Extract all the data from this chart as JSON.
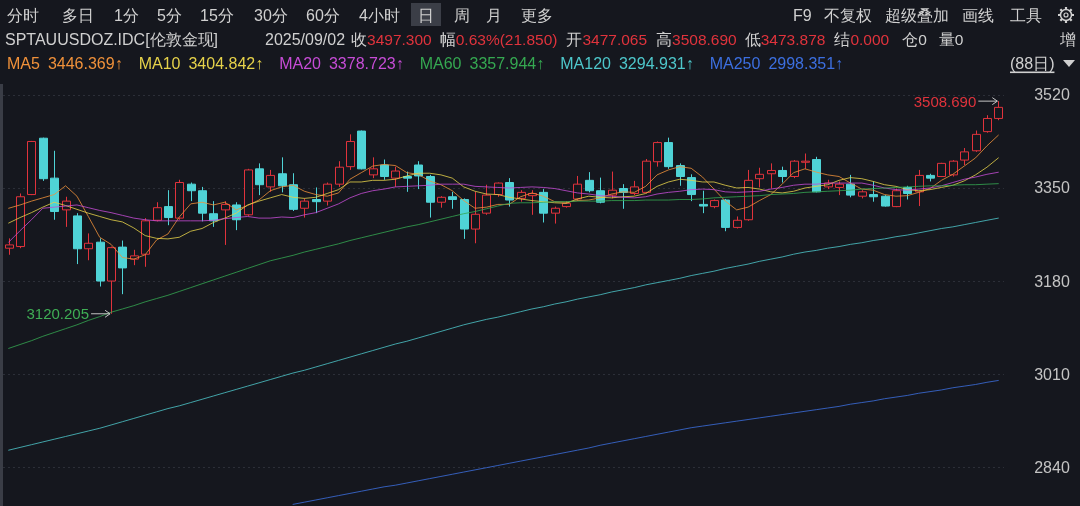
{
  "chart_data": {
    "type": "candlestick",
    "title": "SPTAUUSDOZ.IDC[伦敦金现]",
    "subtitle": "2025/09/02",
    "categories": [
      null,
      null,
      null,
      null,
      null,
      null,
      null,
      null,
      null,
      null,
      null,
      null,
      null,
      null,
      null,
      null,
      null,
      null,
      null,
      null,
      null,
      null,
      null,
      null,
      null,
      null,
      null,
      null,
      null,
      null,
      null,
      null,
      null,
      null,
      null,
      null,
      null,
      null,
      null,
      null,
      null,
      null,
      null,
      null,
      null,
      null,
      null,
      null,
      null,
      null,
      null,
      null,
      null,
      null,
      null,
      null,
      null,
      null,
      null,
      null,
      null,
      null,
      null,
      null,
      null,
      null,
      null,
      null,
      null,
      null,
      null,
      null,
      null,
      null,
      null,
      null,
      null,
      null,
      null,
      null,
      null,
      null,
      null,
      null,
      null,
      null,
      null,
      null
    ],
    "ohlc": [
      [
        3240,
        3258,
        3228,
        3246
      ],
      [
        3243,
        3340,
        3240,
        3334
      ],
      [
        3338,
        3436,
        3337,
        3435
      ],
      [
        3441,
        3442,
        3363,
        3367
      ],
      [
        3368,
        3418,
        3292,
        3307
      ],
      [
        3310,
        3334,
        3279,
        3326
      ],
      [
        3299,
        3304,
        3211,
        3239
      ],
      [
        3239,
        3267,
        3218,
        3249
      ],
      [
        3251,
        3258,
        3170,
        3180
      ],
      [
        3180,
        3243,
        3120.205,
        3241
      ],
      [
        3242,
        3254,
        3156,
        3204
      ],
      [
        3220,
        3237,
        3209,
        3226
      ],
      [
        3229,
        3295,
        3206,
        3290
      ],
      [
        3291,
        3324,
        3289,
        3314
      ],
      [
        3316,
        3346,
        3282,
        3296
      ],
      [
        3295,
        3365,
        3292,
        3360
      ],
      [
        3357,
        3360,
        3326,
        3345
      ],
      [
        3345,
        3352,
        3289,
        3304
      ],
      [
        3303,
        3326,
        3279,
        3290
      ],
      [
        3310,
        3326,
        3246,
        3320
      ],
      [
        3319,
        3324,
        3273,
        3292
      ],
      [
        3301,
        3385,
        3299,
        3383
      ],
      [
        3385,
        3395,
        3337,
        3356
      ],
      [
        3352,
        3383,
        3343,
        3373
      ],
      [
        3376,
        3406,
        3342,
        3354
      ],
      [
        3356,
        3377,
        3308,
        3311
      ],
      [
        3313,
        3331,
        3296,
        3326
      ],
      [
        3329,
        3351,
        3304,
        3325
      ],
      [
        3326,
        3360,
        3318,
        3357
      ],
      [
        3357,
        3399,
        3352,
        3388
      ],
      [
        3389,
        3448,
        3383,
        3435
      ],
      [
        3454,
        3455,
        3384,
        3385
      ],
      [
        3374,
        3406,
        3368,
        3385
      ],
      [
        3392,
        3402,
        3365,
        3371
      ],
      [
        3368,
        3389,
        3352,
        3381
      ],
      [
        3371,
        3380,
        3343,
        3368
      ],
      [
        3392,
        3399,
        3348,
        3372
      ],
      [
        3371,
        3374,
        3296,
        3324
      ],
      [
        3324,
        3335,
        3314,
        3333
      ],
      [
        3334,
        3343,
        3312,
        3329
      ],
      [
        3329,
        3331,
        3257,
        3275
      ],
      [
        3275,
        3343,
        3249,
        3302
      ],
      [
        3304,
        3356,
        3301,
        3337
      ],
      [
        3338,
        3360,
        3334,
        3359
      ],
      [
        3360,
        3368,
        3316,
        3328
      ],
      [
        3331,
        3346,
        3325,
        3342
      ],
      [
        3336,
        3346,
        3301,
        3340
      ],
      [
        3342,
        3348,
        3287,
        3304
      ],
      [
        3304,
        3316,
        3285,
        3313
      ],
      [
        3316,
        3326,
        3314,
        3322
      ],
      [
        3330,
        3372,
        3326,
        3357
      ],
      [
        3364,
        3379,
        3342,
        3345
      ],
      [
        3345,
        3369,
        3322,
        3324
      ],
      [
        3337,
        3380,
        3331,
        3346
      ],
      [
        3349,
        3357,
        3312,
        3342
      ],
      [
        3340,
        3363,
        3337,
        3352
      ],
      [
        3342,
        3403,
        3340,
        3399
      ],
      [
        3398,
        3435,
        3389,
        3433
      ],
      [
        3433,
        3442,
        3385,
        3389
      ],
      [
        3391,
        3395,
        3354,
        3371
      ],
      [
        3369,
        3375,
        3326,
        3338
      ],
      [
        3320,
        3345,
        3304,
        3317
      ],
      [
        3316,
        3329,
        3313,
        3327
      ],
      [
        3328,
        3330,
        3271,
        3278
      ],
      [
        3278,
        3298,
        3276,
        3291
      ],
      [
        3292,
        3383,
        3290,
        3364
      ],
      [
        3367,
        3387,
        3351,
        3375
      ],
      [
        3376,
        3395,
        3349,
        3382
      ],
      [
        3382,
        3389,
        3360,
        3371
      ],
      [
        3371,
        3401,
        3368,
        3399
      ],
      [
        3397,
        3413,
        3385,
        3399
      ],
      [
        3402,
        3407,
        3342,
        3343
      ],
      [
        3352,
        3365,
        3348,
        3359
      ],
      [
        3351,
        3362,
        3337,
        3357
      ],
      [
        3357,
        3374,
        3333,
        3337
      ],
      [
        3335,
        3346,
        3331,
        3343
      ],
      [
        3338,
        3362,
        3325,
        3334
      ],
      [
        3335,
        3337,
        3316,
        3317
      ],
      [
        3316,
        3349,
        3315,
        3345
      ],
      [
        3351,
        3354,
        3329,
        3340
      ],
      [
        3343,
        3383,
        3317,
        3373
      ],
      [
        3373,
        3376,
        3362,
        3368
      ],
      [
        3371,
        3396,
        3370,
        3395
      ],
      [
        3374,
        3401,
        3371,
        3399
      ],
      [
        3401,
        3423,
        3392,
        3416
      ],
      [
        3418,
        3455,
        3416,
        3448
      ],
      [
        3453,
        3483,
        3451,
        3477
      ],
      [
        3477.065,
        3508.69,
        3473.878,
        3497.3
      ]
    ],
    "colors": [
      "#e0333c",
      "#e0333c",
      "#e0333c",
      "#4fd3d6",
      "#4fd3d6",
      "#e0333c",
      "#4fd3d6",
      "#e0333c",
      "#4fd3d6",
      "#e0333c",
      "#4fd3d6",
      "#e0333c",
      "#e0333c",
      "#e0333c",
      "#4fd3d6",
      "#e0333c",
      "#4fd3d6",
      "#4fd3d6",
      "#4fd3d6",
      "#e0333c",
      "#4fd3d6",
      "#e0333c",
      "#4fd3d6",
      "#e0333c",
      "#4fd3d6",
      "#4fd3d6",
      "#e0333c",
      "#4fd3d6",
      "#e0333c",
      "#e0333c",
      "#e0333c",
      "#4fd3d6",
      "#e0333c",
      "#4fd3d6",
      "#e0333c",
      "#4fd3d6",
      "#4fd3d6",
      "#4fd3d6",
      "#e0333c",
      "#4fd3d6",
      "#4fd3d6",
      "#e0333c",
      "#e0333c",
      "#e0333c",
      "#4fd3d6",
      "#e0333c",
      "#e0333c",
      "#4fd3d6",
      "#e0333c",
      "#e0333c",
      "#e0333c",
      "#4fd3d6",
      "#4fd3d6",
      "#e0333c",
      "#4fd3d6",
      "#e0333c",
      "#e0333c",
      "#e0333c",
      "#4fd3d6",
      "#4fd3d6",
      "#4fd3d6",
      "#4fd3d6",
      "#e0333c",
      "#4fd3d6",
      "#e0333c",
      "#e0333c",
      "#e0333c",
      "#e0333c",
      "#4fd3d6",
      "#e0333c",
      "#e0333c",
      "#4fd3d6",
      "#e0333c",
      "#e0333c",
      "#4fd3d6",
      "#e0333c",
      "#4fd3d6",
      "#4fd3d6",
      "#e0333c",
      "#4fd3d6",
      "#e0333c",
      "#4fd3d6",
      "#e0333c",
      "#e0333c",
      "#e0333c",
      "#e0333c",
      "#e0333c",
      "#e0333c"
    ],
    "series": [
      {
        "name": "MA5",
        "type": "line",
        "color": "#f0913a",
        "values": [
          3313,
          3319,
          3326,
          3332,
          3338,
          3354,
          3335,
          3298,
          3260,
          3247,
          3223,
          3220,
          3228,
          3255,
          3266,
          3297,
          3321,
          3324,
          3319,
          3324,
          3310,
          3318,
          3328,
          3345,
          3352,
          3355,
          3344,
          3338,
          3335,
          3341,
          3366,
          3378,
          3390,
          3393,
          3391,
          3378,
          3375,
          3363,
          3356,
          3345,
          3327,
          3313,
          3315,
          3320,
          3320,
          3334,
          3341,
          3335,
          3325,
          3324,
          3327,
          3328,
          3332,
          3339,
          3343,
          3342,
          3353,
          3374,
          3383,
          3389,
          3386,
          3370,
          3348,
          3326,
          3310,
          3315,
          3327,
          3338,
          3357,
          3378,
          3385,
          3379,
          3374,
          3371,
          3359,
          3348,
          3346,
          3338,
          3335,
          3336,
          3342,
          3349,
          3364,
          3375,
          3390,
          3405,
          3427,
          3446.369
        ]
      },
      {
        "name": "MA10",
        "type": "line",
        "color": "#e6d24a",
        "values": [
          3286,
          3296,
          3305,
          3315,
          3324,
          3318,
          3311,
          3304,
          3298,
          3292,
          3288,
          3277,
          3263,
          3258,
          3257,
          3260,
          3271,
          3276,
          3287,
          3295,
          3304,
          3319,
          3326,
          3332,
          3338,
          3333,
          3331,
          3333,
          3340,
          3347,
          3361,
          3361,
          3364,
          3364,
          3366,
          3372,
          3377,
          3377,
          3374,
          3368,
          3352,
          3344,
          3339,
          3338,
          3333,
          3330,
          3327,
          3325,
          3323,
          3322,
          3330,
          3335,
          3333,
          3332,
          3334,
          3335,
          3340,
          3353,
          3361,
          3366,
          3364,
          3361,
          3361,
          3355,
          3350,
          3351,
          3348,
          3343,
          3341,
          3344,
          3350,
          3353,
          3356,
          3364,
          3369,
          3367,
          3362,
          3356,
          3353,
          3347,
          3345,
          3347,
          3351,
          3355,
          3363,
          3374,
          3388,
          3404.842
        ]
      },
      {
        "name": "MA20",
        "type": "line",
        "color": "#c64cd6",
        "values": [
          3251,
          3272,
          3292,
          3313,
          3315,
          3317,
          3319,
          3314,
          3309,
          3305,
          3300,
          3295,
          3292,
          3290,
          3290,
          3290,
          3290,
          3290,
          3291,
          3294,
          3296,
          3298,
          3295,
          3295,
          3297,
          3296,
          3301,
          3305,
          3313,
          3321,
          3332,
          3340,
          3345,
          3348,
          3352,
          3353,
          3354,
          3355,
          3357,
          3357,
          3357,
          3353,
          3352,
          3351,
          3350,
          3351,
          3352,
          3351,
          3349,
          3345,
          3341,
          3339,
          3336,
          3335,
          3333,
          3332,
          3334,
          3339,
          3342,
          3344,
          3347,
          3348,
          3347,
          3343,
          3342,
          3343,
          3344,
          3348,
          3351,
          3355,
          3357,
          3357,
          3359,
          3359,
          3359,
          3359,
          3355,
          3350,
          3347,
          3346,
          3348,
          3350,
          3354,
          3360,
          3366,
          3370,
          3375,
          3378.723
        ]
      },
      {
        "name": "MA60",
        "type": "line",
        "color": "#35a851",
        "values": [
          3057,
          3064,
          3071,
          3079,
          3086,
          3093,
          3100,
          3108,
          3115,
          3123,
          3129,
          3135,
          3142,
          3148,
          3154,
          3161,
          3168,
          3175,
          3182,
          3189,
          3196,
          3203,
          3210,
          3217,
          3222,
          3227,
          3233,
          3238,
          3243,
          3248,
          3254,
          3259,
          3264,
          3269,
          3274,
          3279,
          3283,
          3288,
          3293,
          3298,
          3303,
          3307,
          3312,
          3317,
          3322,
          3323,
          3323,
          3324,
          3325,
          3325,
          3326,
          3326,
          3326,
          3327,
          3327,
          3327,
          3328,
          3328,
          3328,
          3329,
          3329,
          3330,
          3332,
          3333,
          3334,
          3335,
          3336,
          3338,
          3339,
          3340,
          3342,
          3343,
          3344,
          3345,
          3346,
          3348,
          3349,
          3350,
          3351,
          3352,
          3353,
          3354,
          3354,
          3355,
          3356,
          3356,
          3357,
          3357.944
        ]
      },
      {
        "name": "MA120",
        "type": "line",
        "color": "#4ec7cb",
        "values": [
          2871,
          2876,
          2881,
          2886,
          2891,
          2896,
          2901,
          2906,
          2911,
          2917,
          2923,
          2929,
          2935,
          2941,
          2947,
          2952,
          2958,
          2964,
          2970,
          2976,
          2982,
          2988,
          2994,
          3000,
          3006,
          3012,
          3017,
          3023,
          3029,
          3035,
          3041,
          3047,
          3053,
          3059,
          3065,
          3070,
          3076,
          3082,
          3088,
          3094,
          3100,
          3105,
          3110,
          3114,
          3119,
          3124,
          3129,
          3133,
          3138,
          3142,
          3147,
          3151,
          3155,
          3160,
          3164,
          3168,
          3173,
          3177,
          3181,
          3185,
          3190,
          3194,
          3198,
          3203,
          3207,
          3211,
          3216,
          3220,
          3224,
          3229,
          3233,
          3236,
          3240,
          3243,
          3247,
          3250,
          3254,
          3257,
          3261,
          3264,
          3268,
          3272,
          3276,
          3279,
          3283,
          3287,
          3291,
          3294.931
        ]
      },
      {
        "name": "MA250",
        "type": "line",
        "color": "#3c6fe0",
        "values": [
          null,
          null,
          null,
          null,
          null,
          null,
          null,
          null,
          null,
          null,
          null,
          null,
          null,
          null,
          null,
          null,
          null,
          null,
          null,
          null,
          null,
          null,
          null,
          null,
          null,
          2772,
          2776,
          2780,
          2784,
          2788,
          2792,
          2796,
          2800,
          2804,
          2807,
          2811,
          2815,
          2819,
          2823,
          2827,
          2831,
          2835,
          2839,
          2843,
          2847,
          2851,
          2855,
          2859,
          2863,
          2867,
          2871,
          2875,
          2880,
          2884,
          2888,
          2892,
          2896,
          2900,
          2904,
          2908,
          2912,
          2915,
          2918,
          2921,
          2924,
          2927,
          2930,
          2933,
          2936,
          2939,
          2942,
          2945,
          2948,
          2951,
          2955,
          2958,
          2961,
          2965,
          2968,
          2971,
          2975,
          2978,
          2981,
          2985,
          2988,
          2991,
          2995,
          2998.351
        ]
      }
    ],
    "ylim": [
      2769,
      3540
    ],
    "yticks": [
      2840,
      3010,
      3180,
      3350,
      3520
    ],
    "grid": "y",
    "legend": "top left",
    "tick_labels": "y",
    "annotations": [
      "分时",
      "多日",
      "1分",
      "5分",
      "15分",
      "30分",
      "60分",
      "4小时",
      "日",
      "周",
      "月",
      "更多",
      "F9",
      "不复权",
      "超级叠加",
      "画线",
      "工具",
      "收3497.300",
      "幅0.63%(21.850)",
      "开3477.065",
      "高3508.690",
      "低3473.878",
      "结0.000",
      "仓0",
      "量0",
      "增",
      "3446.369↑",
      "3404.842↑",
      "3378.723↑",
      "3357.944↑",
      "3294.931↑",
      "2998.351↑",
      "(88日)",
      "3508.690",
      "3120.205"
    ]
  }
}
